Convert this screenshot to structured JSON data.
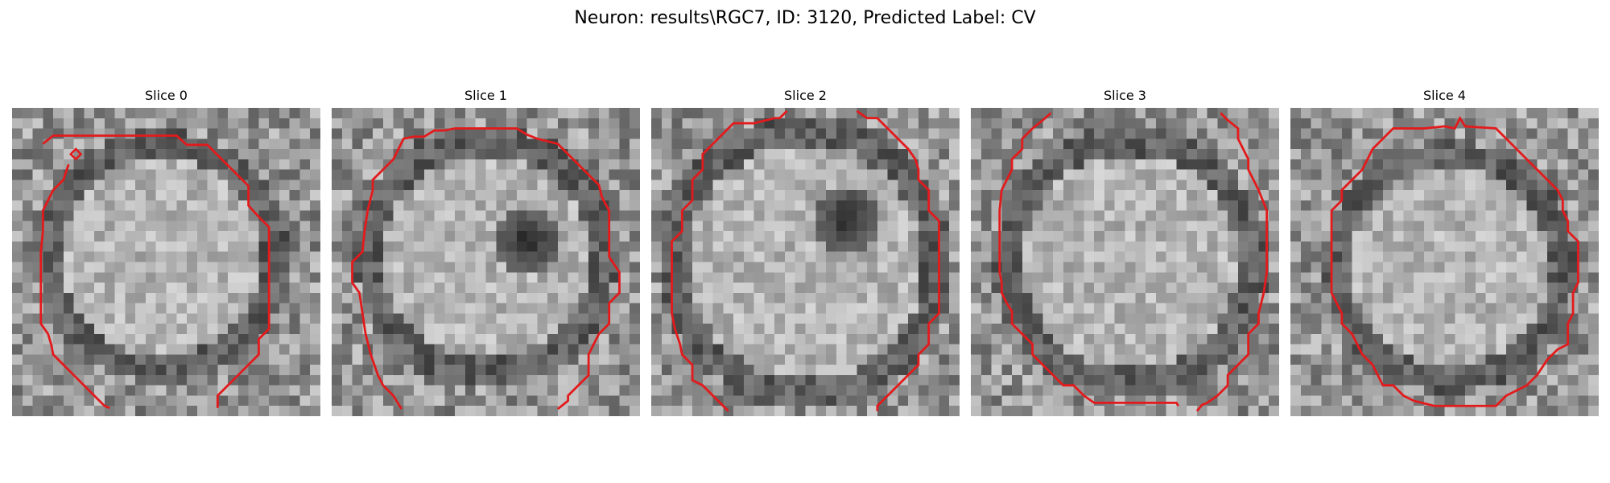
{
  "figure": {
    "title": "Neuron: results\\RGC7, ID: 3120, Predicted Label: CV"
  },
  "panels": [
    {
      "title": "Slice 0"
    },
    {
      "title": "Slice 1"
    },
    {
      "title": "Slice 2"
    },
    {
      "title": "Slice 3"
    },
    {
      "title": "Slice 4"
    }
  ],
  "colors": {
    "contour": "#e31a1c",
    "background": "#ffffff"
  }
}
